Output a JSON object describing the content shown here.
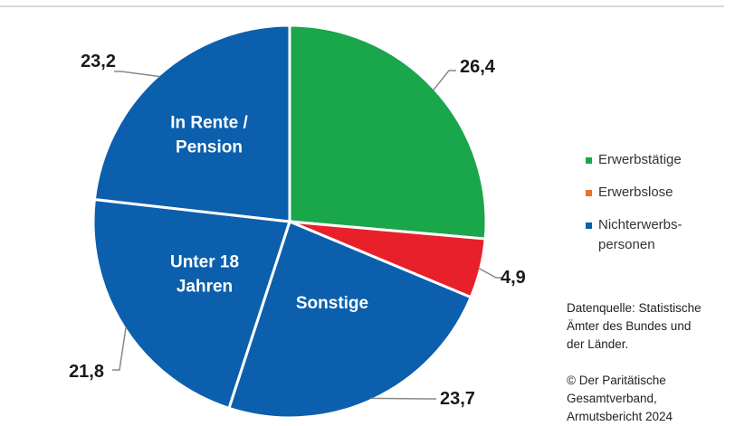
{
  "colors": {
    "top_rule": "#cccccc",
    "leader": "#888888",
    "slice_border": "#ffffff"
  },
  "chart_data": {
    "type": "pie",
    "slices": [
      {
        "value": 26.4,
        "label": "26,4",
        "inner_label": "",
        "color": "#1aa64b",
        "legend_group": "Erwerbstätige"
      },
      {
        "value": 4.9,
        "label": "4,9",
        "inner_label": "",
        "color": "#e8202a",
        "legend_group": "Erwerbslose"
      },
      {
        "value": 23.7,
        "label": "23,7",
        "inner_label": "Sonstige",
        "color": "#0b5fad",
        "legend_group": "Nichterwerbs-\npersonen"
      },
      {
        "value": 21.8,
        "label": "21,8",
        "inner_label": "Unter 18\nJahren",
        "color": "#0b5fad",
        "legend_group": "Nichterwerbs-\npersonen"
      },
      {
        "value": 23.2,
        "label": "23,2",
        "inner_label": "In Rente /\nPension",
        "color": "#0b5fad",
        "legend_group": "Nichterwerbs-\npersonen"
      }
    ],
    "legend": [
      {
        "label": "Erwerbstätige",
        "color": "#1aa64b"
      },
      {
        "label": "Erwerbslose",
        "color": "#e8712a"
      },
      {
        "label": "Nichterwerbs-\npersonen",
        "color": "#0b5fad"
      }
    ],
    "legend_position": "right"
  },
  "source_note": "Datenquelle: Statistische\nÄmter des Bundes und\nder Länder.\n\n© Der Paritätische\nGesamtverband,\nArmutsbericht 2024"
}
